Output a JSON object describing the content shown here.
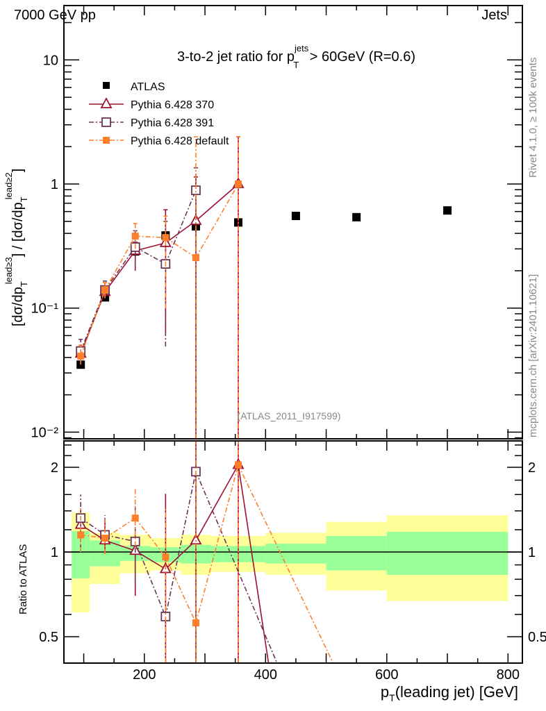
{
  "header": {
    "left": "7000 GeV pp",
    "right": "Jets"
  },
  "side_text": {
    "rivet": "Rivet 4.1.0, ≥ 100k events",
    "mcplots": "mcplots.cern.ch [arXiv:2401.10621]"
  },
  "watermark": "(ATLAS_2011_I917599)",
  "chart_data": {
    "type": "scatter",
    "title": "3-to-2 jet ratio for p_T^jets > 60GeV (R=0.6)",
    "title_parts": {
      "main": "3-to-2 jet ratio for p",
      "sup": "jets",
      "sub": "T",
      "tail": " > 60GeV (R=0.6)"
    },
    "ylabel": "[dσ/dp_T^lead≥3] / [dσ/dp_T^lead≥2]",
    "ylabel_parts": {
      "a": "[dσ/dp",
      "sub": "T",
      "sup1": "lead≥3",
      "b": "] / [dσ/dp",
      "sup2": "lead≥2",
      "c": "]"
    },
    "xlabel": "p_T(leading jet) [GeV]",
    "xlabel_parts": {
      "a": "p",
      "sub": "T",
      "b": "(leading jet) [GeV]"
    },
    "ratio_ylabel": "Ratio to ATLAS",
    "xlim": [
      67,
      824
    ],
    "ylim": [
      0.0088,
      27
    ],
    "yscale": "log",
    "ratio_ylim": [
      0.403,
      2.48
    ],
    "x_ticks": [
      200,
      400,
      600,
      800
    ],
    "y_ticks": [
      {
        "v": 0.01,
        "label": "10⁻²"
      },
      {
        "v": 0.1,
        "label": "10⁻¹"
      },
      {
        "v": 1,
        "label": "1"
      },
      {
        "v": 10,
        "label": "10"
      }
    ],
    "ratio_ticks": [
      {
        "v": 0.5,
        "label": "0.5"
      },
      {
        "v": 1,
        "label": "1"
      },
      {
        "v": 2,
        "label": "2"
      }
    ],
    "legend_position": "top-left",
    "bins": [
      80,
      110,
      160,
      210,
      260,
      310,
      400,
      500,
      600,
      800
    ],
    "x": [
      95,
      135,
      185,
      235,
      285,
      355,
      450,
      550,
      700
    ],
    "data": {
      "name": "ATLAS",
      "values": [
        0.035,
        0.122,
        0.286,
        0.385,
        0.456,
        0.49,
        0.553,
        0.54,
        0.612
      ],
      "band_inner": [
        [
          0.806,
          1.186
        ],
        [
          0.89,
          1.1
        ],
        [
          0.93,
          1.05
        ],
        [
          0.92,
          1.04
        ],
        [
          0.91,
          1.06
        ],
        [
          0.92,
          1.05
        ],
        [
          0.91,
          1.07
        ],
        [
          0.86,
          1.14
        ],
        [
          0.83,
          1.18
        ]
      ],
      "band_outer": [
        [
          0.61,
          1.38
        ],
        [
          0.77,
          1.17
        ],
        [
          0.84,
          1.15
        ],
        [
          0.86,
          1.12
        ],
        [
          0.83,
          1.15
        ],
        [
          0.85,
          1.14
        ],
        [
          0.83,
          1.17
        ],
        [
          0.73,
          1.28
        ],
        [
          0.67,
          1.35
        ]
      ]
    },
    "series": [
      {
        "name": "Pythia 6.428 370",
        "color": "#9e1030",
        "marker": "open-triangle",
        "dash": "",
        "x": [
          95,
          135,
          185,
          235,
          285,
          355
        ],
        "values": [
          0.043,
          0.135,
          0.29,
          0.335,
          0.505,
          1.0
        ],
        "err": [
          [
            0.038,
            0.05
          ],
          [
            0.125,
            0.16
          ],
          [
            0.2,
            0.34
          ],
          [
            0.063,
            0.62
          ],
          [
            0.001,
            1.14
          ],
          [
            0.001,
            2.4
          ]
        ],
        "ratio_x": [
          95,
          135,
          185,
          235,
          285,
          355,
          450
        ],
        "ratio": [
          1.25,
          1.1,
          1.01,
          0.87,
          1.1,
          2.04,
          0.093
        ]
      },
      {
        "name": "Pythia 6.428 391",
        "color": "#6b3556",
        "marker": "open-square",
        "dash": "7,3,2,3",
        "x": [
          95,
          135,
          185,
          235,
          285
        ],
        "values": [
          0.045,
          0.14,
          0.31,
          0.227,
          0.89
        ],
        "err": [
          [
            0.036,
            0.056
          ],
          [
            0.12,
            0.165
          ],
          [
            0.22,
            0.42
          ],
          [
            0.049,
            0.5
          ],
          [
            0.001,
            1.35
          ]
        ],
        "ratio_x": [
          95,
          135,
          185,
          235,
          285,
          450
        ],
        "ratio": [
          1.32,
          1.15,
          1.09,
          0.59,
          1.93,
          0.28
        ]
      },
      {
        "name": "Pythia 6.428 default",
        "color": "#ff7f2a",
        "marker": "filled-square",
        "dash": "7,3,2,3",
        "x": [
          95,
          135,
          185,
          235,
          285,
          355
        ],
        "values": [
          0.041,
          0.14,
          0.38,
          0.37,
          0.255,
          1.0
        ],
        "err": [
          [
            0.035,
            0.05
          ],
          [
            0.12,
            0.16
          ],
          [
            0.3,
            0.48
          ],
          [
            0.1,
            0.55
          ],
          [
            0.001,
            2.4
          ],
          [
            0.001,
            2.4
          ]
        ],
        "ratio_x": [
          95,
          135,
          185,
          235,
          285,
          355,
          550
        ],
        "ratio": [
          1.15,
          1.12,
          1.32,
          0.96,
          0.56,
          2.04,
          0.27
        ]
      }
    ],
    "colors": {
      "band_inner": "#99ff99",
      "band_outer": "#ffff99"
    }
  }
}
